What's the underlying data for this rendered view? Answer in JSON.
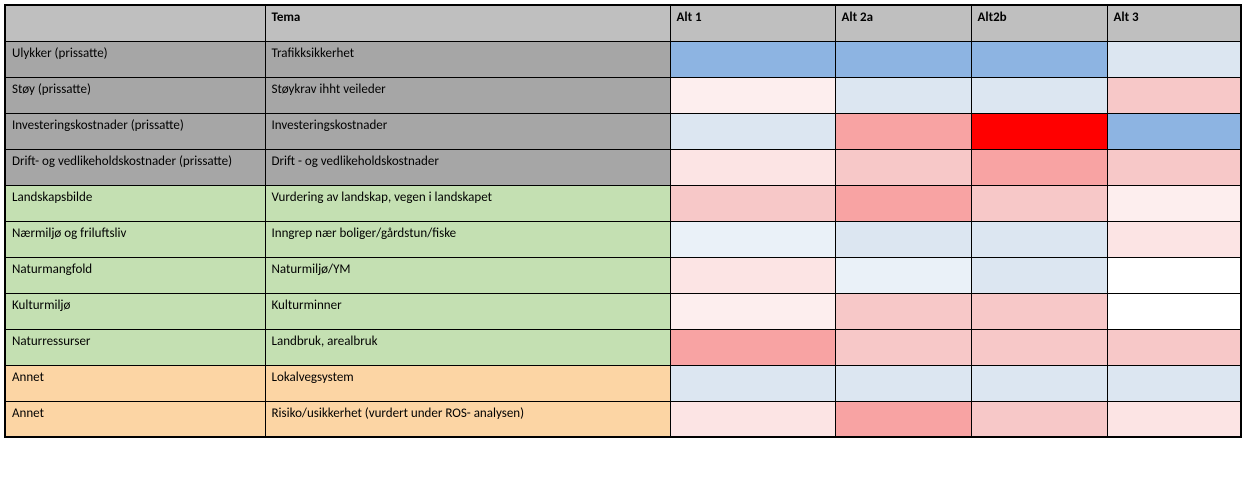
{
  "colors": {
    "header": "#bfbfbf",
    "grey": "#a6a6a6",
    "green": "#c4e0b2",
    "orange": "#fcd5a4",
    "blue_strong": "#8db4e2",
    "blue_light": "#dce6f1",
    "blue_vlight": "#eaf1f8",
    "red_full": "#ff0000",
    "red_strong": "#f8a3a3",
    "red_med": "#f7c8c8",
    "red_light": "#fce4e4",
    "red_vlight": "#fdeeee",
    "white": "#ffffff"
  },
  "headers": {
    "c0": "",
    "c1": "Tema",
    "c2": "Alt 1",
    "c3": "Alt 2a",
    "c4": "Alt2b",
    "c5": "Alt 3"
  },
  "rows": [
    {
      "c0": "Ulykker (prissatte)",
      "c1": "Trafikksikkerhet",
      "cat_color": "grey",
      "cells": [
        "blue_strong",
        "blue_strong",
        "blue_strong",
        "blue_light"
      ]
    },
    {
      "c0": "Støy (prissatte)",
      "c1": "Støykrav ihht veileder",
      "cat_color": "grey",
      "cells": [
        "red_vlight",
        "blue_light",
        "blue_light",
        "red_med"
      ]
    },
    {
      "c0": "Investeringskostnader (prissatte)",
      "c1": "Investeringskostnader",
      "cat_color": "grey",
      "cells": [
        "blue_light",
        "red_strong",
        "red_full",
        "blue_strong"
      ]
    },
    {
      "c0": "Drift- og vedlikeholdskostnader (prissatte)",
      "c1": "Drift - og vedlikeholdskostnader",
      "cat_color": "grey",
      "cells": [
        "red_light",
        "red_med",
        "red_strong",
        "red_med"
      ]
    },
    {
      "c0": "Landskapsbilde",
      "c1": "Vurdering av landskap, vegen i landskapet",
      "cat_color": "green",
      "cells": [
        "red_med",
        "red_strong",
        "red_med",
        "red_vlight"
      ]
    },
    {
      "c0": "Nærmiljø og friluftsliv",
      "c1": "Inngrep nær boliger/gårdstun/fiske",
      "cat_color": "green",
      "cells": [
        "blue_vlight",
        "blue_light",
        "blue_light",
        "red_light"
      ]
    },
    {
      "c0": "Naturmangfold",
      "c1": "Naturmiljø/YM",
      "cat_color": "green",
      "cells": [
        "red_light",
        "blue_vlight",
        "blue_light",
        "white"
      ]
    },
    {
      "c0": "Kulturmiljø",
      "c1": "Kulturminner",
      "cat_color": "green",
      "cells": [
        "red_vlight",
        "red_med",
        "red_med",
        "white"
      ]
    },
    {
      "c0": "Naturressurser",
      "c1": "Landbruk, arealbruk",
      "cat_color": "green",
      "cells": [
        "red_strong",
        "red_med",
        "red_med",
        "red_med"
      ]
    },
    {
      "c0": "Annet",
      "c1": "Lokalvegsystem",
      "cat_color": "orange",
      "cells": [
        "blue_light",
        "blue_light",
        "blue_light",
        "blue_light"
      ]
    },
    {
      "c0": "Annet",
      "c1": "Risiko/usikkerhet (vurdert under ROS- analysen)",
      "cat_color": "orange",
      "cells": [
        "red_light",
        "red_strong",
        "red_med",
        "red_light"
      ]
    }
  ]
}
